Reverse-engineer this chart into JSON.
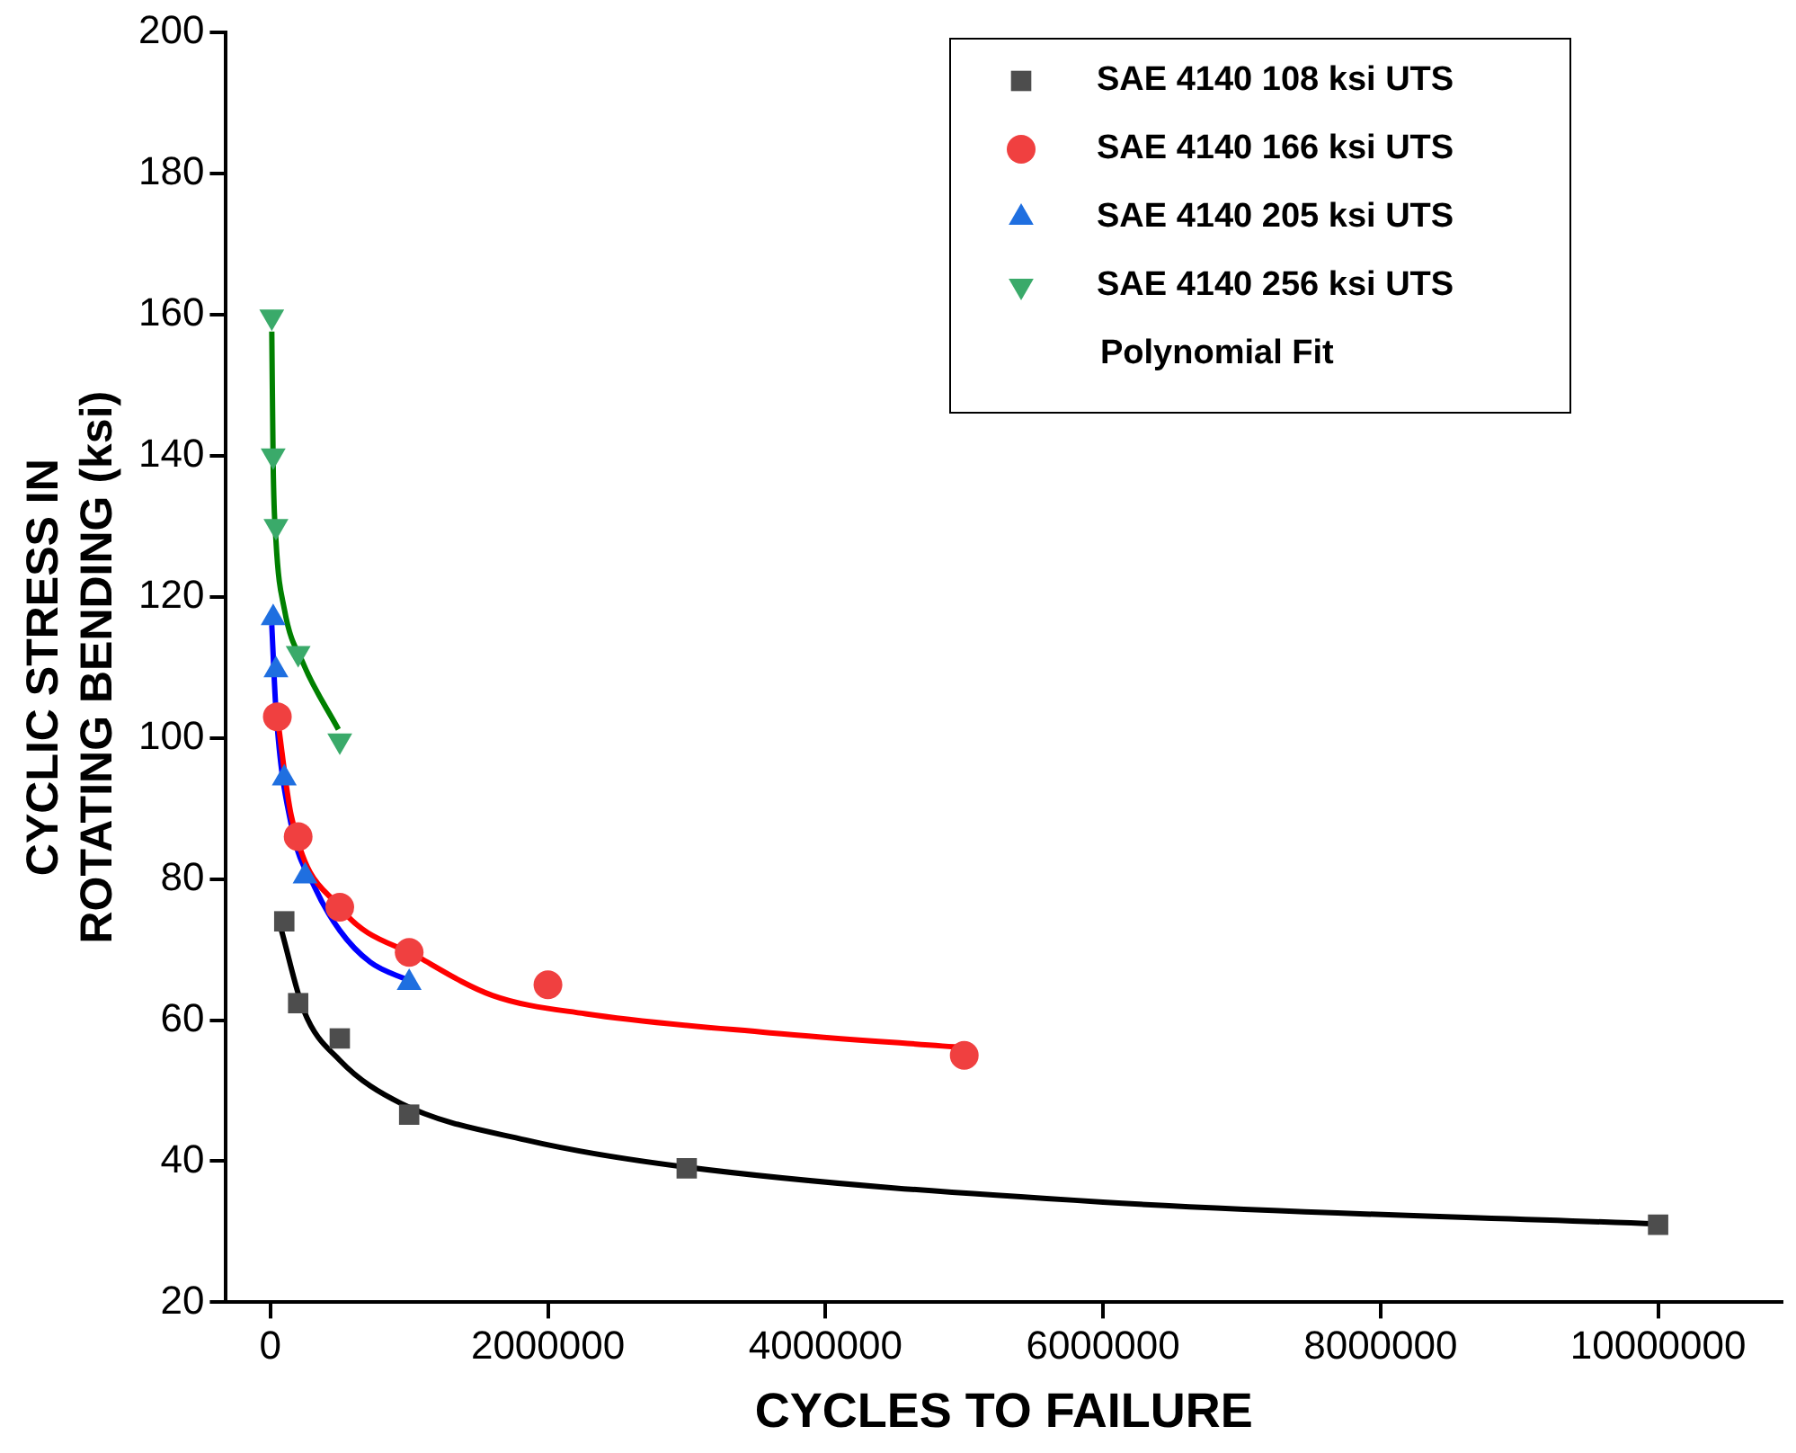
{
  "chart_data": {
    "type": "scatter",
    "xlabel": "CYCLES TO FAILURE",
    "ylabel": "CYCLIC STRESS IN\nROTATING BENDING (ksi)",
    "xlim": [
      -320000,
      10890000
    ],
    "ylim": [
      20,
      200
    ],
    "xticks": [
      0,
      2000000,
      4000000,
      6000000,
      8000000,
      10000000
    ],
    "yticks": [
      20,
      40,
      60,
      80,
      100,
      120,
      140,
      160,
      180,
      200
    ],
    "grid": false,
    "legend": "top right",
    "annotations": [
      "Polynomial Fit"
    ],
    "series": [
      {
        "name": "SAE 4140 108 ksi UTS",
        "type": "scatter",
        "marker": "square",
        "color": "#4d4d4d",
        "x": [
          100000,
          200000,
          500000,
          1000000,
          3000000,
          10000000
        ],
        "values": [
          74,
          62.4,
          57.4,
          46.6,
          39,
          31
        ]
      },
      {
        "name": "SAE 4140 166 ksi UTS",
        "type": "scatter",
        "marker": "circle",
        "color": "#f04040",
        "x": [
          50000,
          200000,
          500000,
          1000000,
          2000000,
          5000000
        ],
        "values": [
          103,
          86,
          76,
          69.6,
          65,
          55
        ]
      },
      {
        "name": "SAE 4140 205 ksi UTS",
        "type": "scatter",
        "marker": "triangle",
        "color": "#1f6fe0",
        "x": [
          20000,
          40000,
          100000,
          250000,
          1000000
        ],
        "values": [
          117,
          109.6,
          94.3,
          80.4,
          65.3
        ]
      },
      {
        "name": "SAE 4140 256 ksi UTS",
        "type": "scatter",
        "marker": "triangle-down",
        "color": "#3aaa6a",
        "x": [
          10000,
          20000,
          40000,
          200000,
          500000
        ],
        "values": [
          159.7,
          140,
          130,
          112,
          99.6
        ]
      },
      {
        "type": "line",
        "marker": "none",
        "color": "#000000",
        "x": [
          80000,
          240000,
          500000,
          940000,
          1840000,
          2980000,
          6000000,
          10000000
        ],
        "values": [
          72.7,
          61.4,
          54.3,
          48.2,
          43,
          39.2,
          34.2,
          31.1
        ]
      },
      {
        "type": "line",
        "marker": "none",
        "color": "#ff0000",
        "x": [
          50000,
          150000,
          500000,
          1080000,
          1600000,
          2270000,
          3600000,
          5000000
        ],
        "values": [
          103,
          89,
          76,
          68.8,
          63.5,
          60.9,
          58.2,
          56.1
        ]
      },
      {
        "type": "line",
        "marker": "none",
        "color": "#0000ff",
        "x": [
          10000,
          40000,
          150000,
          320000,
          500000,
          720000,
          1000000
        ],
        "values": [
          116,
          104,
          87.7,
          78.8,
          72.7,
          68.2,
          65.6
        ]
      },
      {
        "type": "line",
        "marker": "none",
        "color": "#008000",
        "x": [
          10000,
          20000,
          40000,
          100000,
          240000,
          490000
        ],
        "values": [
          157.6,
          138.6,
          128,
          118.3,
          110.4,
          101.2
        ]
      }
    ]
  }
}
